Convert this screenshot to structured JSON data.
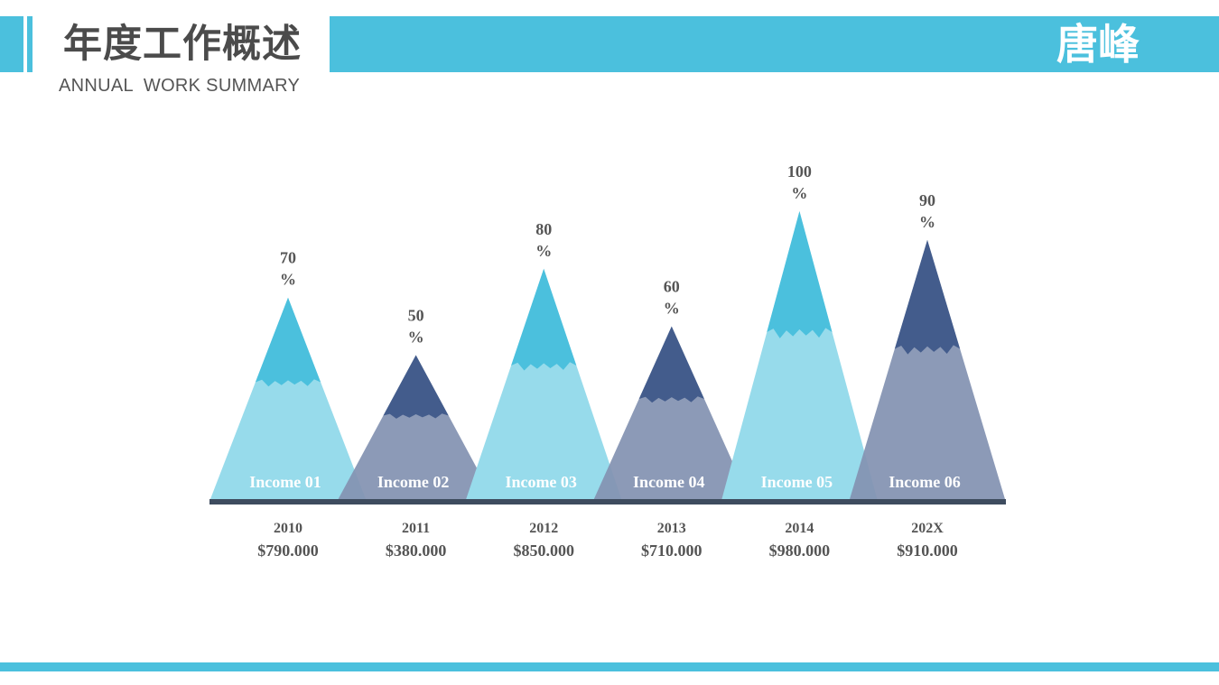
{
  "header": {
    "title": "年度工作概述",
    "subtitle": "ANNUAL  WORK SUMMARY",
    "name": "唐峰"
  },
  "colors": {
    "accent": "#4bc0dd",
    "light_body": "#97dbeb",
    "light_tip": "#4bc0dd",
    "dark_body": "#8392b2",
    "dark_tip": "#435c8c",
    "baseline": "#3e4c5f",
    "text": "#555555"
  },
  "chart_data": {
    "type": "bar",
    "style": "triangle mountains with snow caps",
    "categories": [
      "Income 01",
      "Income 02",
      "Income 03",
      "Income 04",
      "Income 05",
      "Income 06"
    ],
    "values": [
      70,
      50,
      80,
      60,
      100,
      90
    ],
    "value_unit": "%",
    "years": [
      "2010",
      "2011",
      "2012",
      "2013",
      "2014",
      "202X"
    ],
    "amounts": [
      "$790.000",
      "$380.000",
      "$850.000",
      "$710.000",
      "$980.000",
      "$910.000"
    ],
    "tones": [
      "light",
      "dark",
      "light",
      "dark",
      "light",
      "dark"
    ]
  }
}
